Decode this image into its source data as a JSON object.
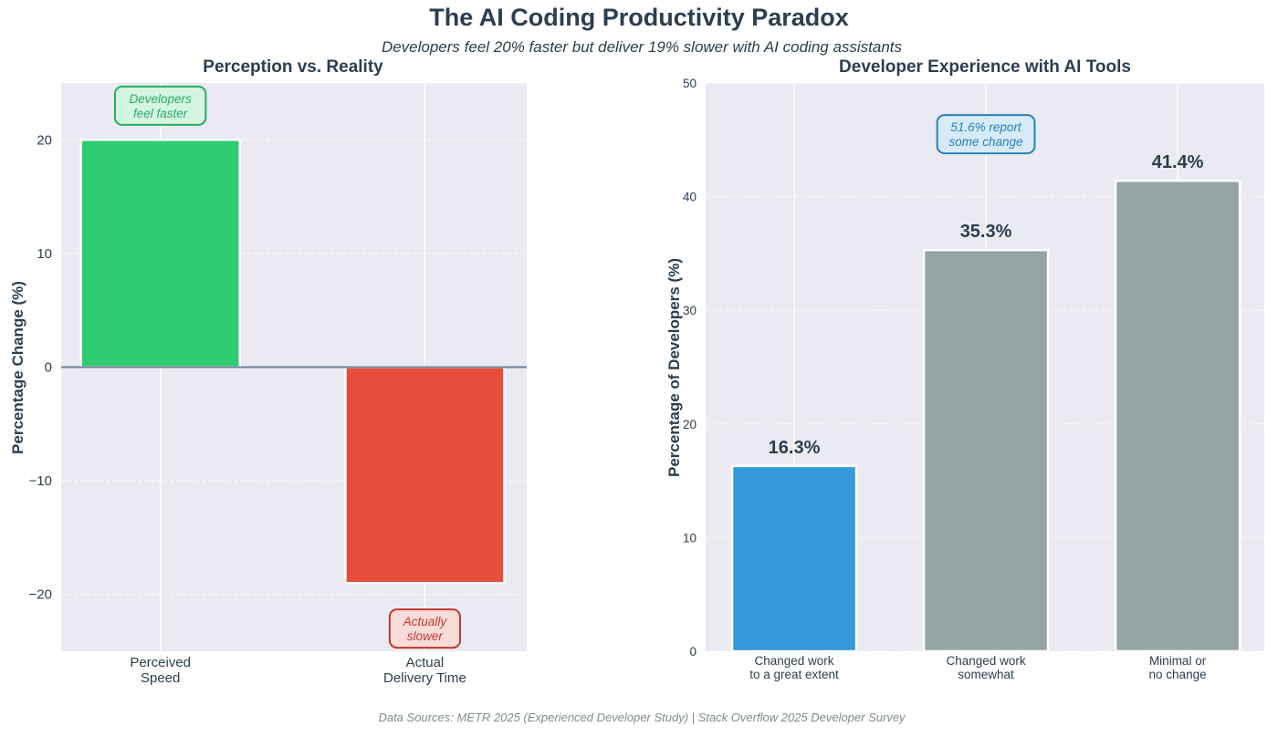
{
  "title": "The AI Coding Productivity Paradox",
  "subtitle": "Developers feel 20% faster but deliver 19% slower with AI coding assistants",
  "footer": "Data Sources: METR 2025 (Experienced Developer Study) | Stack Overflow 2025 Developer Survey",
  "colors": {
    "text": "#2c3e50",
    "plot_bg": "#eaeaf2",
    "green": "#2ecc71",
    "red": "#e74c3c",
    "blue": "#3498db",
    "gray": "#95a5a6",
    "zero_line": "#708090"
  },
  "chart_data": [
    {
      "type": "bar",
      "title": "Perception vs. Reality",
      "ylabel": "Percentage Change (%)",
      "xlabel": "",
      "categories": [
        "Perceived\nSpeed",
        "Actual\nDelivery Time"
      ],
      "values": [
        20,
        -19
      ],
      "bar_colors": [
        "#2ecc71",
        "#e74c3c"
      ],
      "ylim": [
        -25,
        25
      ],
      "yticks": [
        -20,
        -10,
        0,
        10,
        20
      ],
      "ytick_labels": [
        "−20",
        "−10",
        "0",
        "10",
        "20"
      ],
      "grid": true,
      "annotations": [
        {
          "text": "Developers\nfeel faster",
          "category": 0,
          "y": 23,
          "color": "#27ae60",
          "bg": "#d5f5e3"
        },
        {
          "text": "Actually\nslower",
          "category": 1,
          "y": -23,
          "color": "#c0392b",
          "bg": "#fadbd8"
        }
      ]
    },
    {
      "type": "bar",
      "title": "Developer Experience with AI Tools",
      "ylabel": "Percentage of Developers (%)",
      "xlabel": "",
      "categories": [
        "Changed work\nto a great extent",
        "Changed work\nsomewhat",
        "Minimal or\nno change"
      ],
      "values": [
        16.3,
        35.3,
        41.4
      ],
      "data_labels": [
        "16.3%",
        "35.3%",
        "41.4%"
      ],
      "bar_colors": [
        "#3498db",
        "#95a5a6",
        "#95a5a6"
      ],
      "ylim": [
        0,
        50
      ],
      "yticks": [
        0,
        10,
        20,
        30,
        40,
        50
      ],
      "ytick_labels": [
        "0",
        "10",
        "20",
        "30",
        "40",
        "50"
      ],
      "grid": true,
      "annotations": [
        {
          "text": "51.6% report\nsome change",
          "category": 1,
          "y": 45.5,
          "color": "#2980b9",
          "bg": "#d6eaf8"
        }
      ]
    }
  ]
}
